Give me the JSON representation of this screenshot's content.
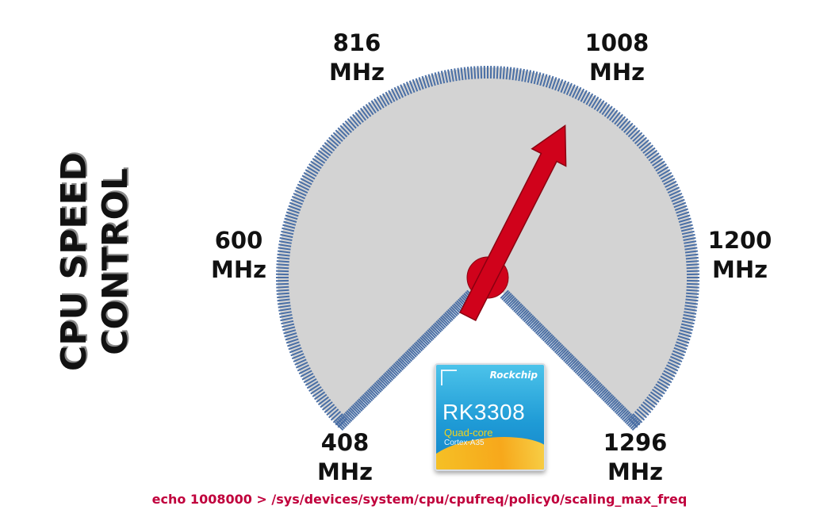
{
  "title": {
    "line1": "CPU SPEED",
    "line2": "CONTROL"
  },
  "gauge": {
    "labels": [
      {
        "value": "408",
        "unit": "MHz"
      },
      {
        "value": "600",
        "unit": "MHz"
      },
      {
        "value": "816",
        "unit": "MHz"
      },
      {
        "value": "1008",
        "unit": "MHz"
      },
      {
        "value": "1200",
        "unit": "MHz"
      },
      {
        "value": "1296",
        "unit": "MHz"
      }
    ],
    "current_value": "1008",
    "colors": {
      "face": "#d3d3d3",
      "rim": "#4a6fa5",
      "needle": "#d0021b"
    }
  },
  "chip": {
    "brand": "Rockchip",
    "model": "RK3308",
    "cores": "Quad-core",
    "arch": "Cortex-A35"
  },
  "command": "echo 1008000 > /sys/devices/system/cpu/cpufreq/policy0/scaling_max_freq"
}
